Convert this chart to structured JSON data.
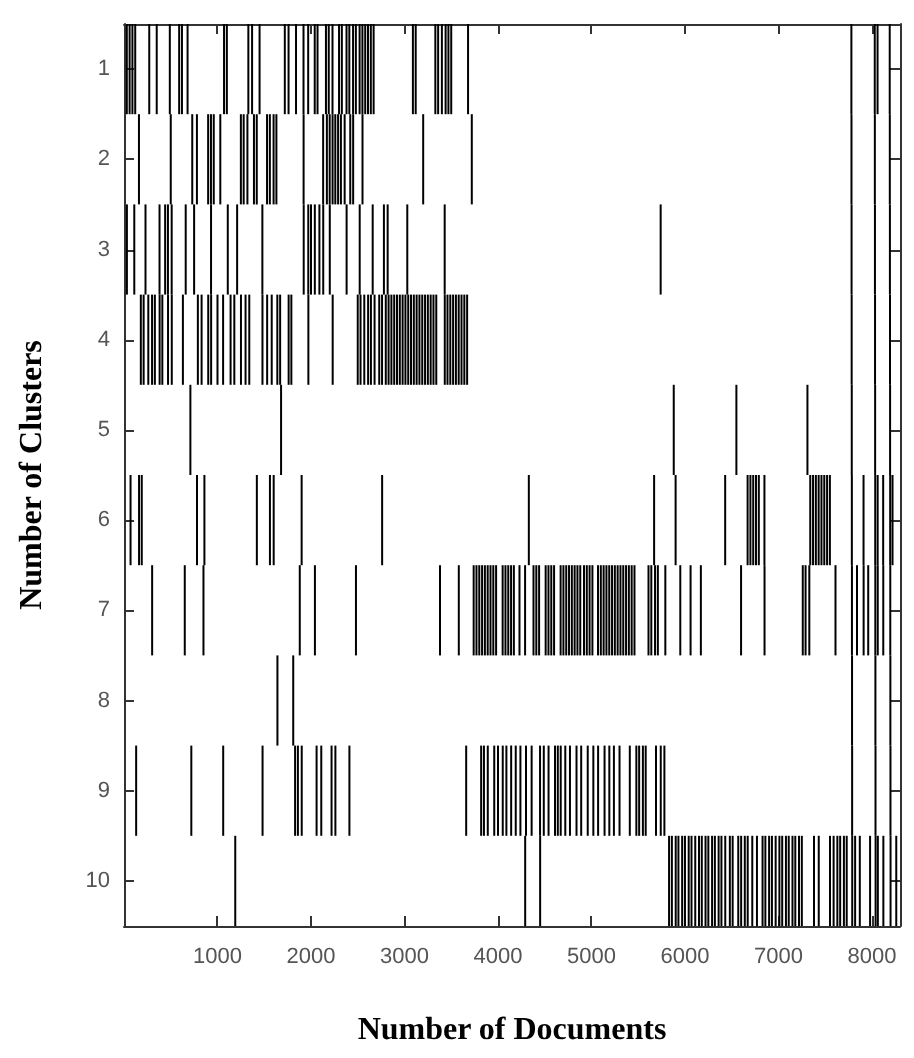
{
  "chart_data": {
    "type": "bar",
    "xlabel": "Number of Documents",
    "ylabel": "Number of Clusters",
    "xlim": [
      0,
      8300
    ],
    "xticks": [
      1000,
      2000,
      3000,
      4000,
      5000,
      6000,
      7000,
      8000
    ],
    "ylim": [
      10.5,
      0.5
    ],
    "yticks": [
      1,
      2,
      3,
      4,
      5,
      6,
      7,
      8,
      9,
      10
    ],
    "series": [
      {
        "color": "#000000",
        "x": [
          30,
          31,
          60,
          70,
          90,
          110,
          120,
          130,
          160,
          161,
          180,
          190,
          210,
          230,
          260,
          270,
          300,
          301,
          330,
          350,
          380,
          381,
          410,
          440,
          470,
          471,
          490,
          500,
          510,
          511,
          590,
          620,
          630,
          650,
          660,
          680,
          710,
          720,
          730,
          750,
          780,
          781,
          790,
          830,
          850,
          860,
          900,
          901,
          930,
          931,
          932,
          960,
          1000,
          1030,
          1060,
          1061,
          1070,
          1100,
          1110,
          1140,
          1180,
          1190,
          1210,
          1250,
          1251,
          1280,
          1300,
          1320,
          1330,
          1340,
          1370,
          1390,
          1420,
          1421,
          1450,
          1480,
          1481,
          1482,
          1530,
          1531,
          1560,
          1561,
          1580,
          1600,
          1601,
          1630,
          1640,
          1641,
          1670,
          1680,
          1720,
          1760,
          1761,
          1790,
          1810,
          1830,
          1840,
          1860,
          1880,
          1900,
          1901,
          1920,
          1921,
          1922,
          1970,
          1971,
          1972,
          2000,
          2040,
          2041,
          2042,
          2060,
          2070,
          2090,
          2110,
          2130,
          2131,
          2160,
          2170,
          2190,
          2200,
          2201,
          2220,
          2230,
          2231,
          2232,
          2260,
          2261,
          2290,
          2300,
          2320,
          2330,
          2360,
          2380,
          2381,
          2410,
          2411,
          2420,
          2450,
          2451,
          2480,
          2481,
          2500,
          2520,
          2521,
          2530,
          2550,
          2551,
          2570,
          2580,
          2610,
          2611,
          2640,
          2641,
          2660,
          2670,
          2680,
          2730,
          2760,
          2761,
          2780,
          2800,
          2820,
          2830,
          2860,
          2890,
          2920,
          2950,
          2980,
          3010,
          3030,
          3040,
          3070,
          3090,
          3100,
          3120,
          3130,
          3160,
          3190,
          3200,
          3220,
          3250,
          3280,
          3310,
          3330,
          3340,
          3360,
          3380,
          3400,
          3430,
          3431,
          3440,
          3460,
          3470,
          3490,
          3500,
          3520,
          3550,
          3580,
          3581,
          3610,
          3640,
          3660,
          3670,
          3680,
          3720,
          3740,
          3770,
          3800,
          3820,
          3830,
          3850,
          3860,
          3890,
          3891,
          3920,
          3950,
          3960,
          3980,
          4000,
          4050,
          4051,
          4080,
          4090,
          4110,
          4140,
          4141,
          4170,
          4190,
          4230,
          4240,
          4290,
          4291,
          4300,
          4330,
          4360,
          4380,
          4410,
          4440,
          4450,
          4451,
          4490,
          4510,
          4540,
          4541,
          4570,
          4600,
          4610,
          4640,
          4670,
          4671,
          4700,
          4720,
          4730,
          4760,
          4770,
          4790,
          4820,
          4840,
          4850,
          4880,
          4890,
          4920,
          4950,
          4960,
          4980,
          5010,
          5020,
          5070,
          5071,
          5100,
          5130,
          5140,
          5160,
          5190,
          5191,
          5220,
          5240,
          5250,
          5280,
          5300,
          5310,
          5340,
          5370,
          5400,
          5410,
          5430,
          5460,
          5480,
          5510,
          5550,
          5580,
          5610,
          5640,
          5670,
          5680,
          5690,
          5710,
          5740,
          5741,
          5780,
          5790,
          5830,
          5860,
          5880,
          5900,
          5901,
          5930,
          5950,
          5970,
          6000,
          6040,
          6060,
          6070,
          6110,
          6150,
          6170,
          6180,
          6220,
          6250,
          6290,
          6320,
          6360,
          6390,
          6430,
          6431,
          6480,
          6510,
          6550,
          6570,
          6600,
          6601,
          6640,
          6670,
          6671,
          6700,
          6720,
          6730,
          6760,
          6770,
          6790,
          6830,
          6850,
          6851,
          6860,
          6900,
          6930,
          6970,
          7010,
          7040,
          7080,
          7110,
          7150,
          7180,
          7220,
          7250,
          7260,
          7290,
          7310,
          7330,
          7340,
          7370,
          7380,
          7400,
          7430,
          7431,
          7460,
          7490,
          7520,
          7550,
          7551,
          7590,
          7610,
          7630,
          7660,
          7700,
          7730,
          7780,
          7781,
          7782,
          7783,
          7784,
          7785,
          7786,
          7787,
          7788,
          7789,
          7820,
          7840,
          7870,
          7910,
          7911,
          7960,
          7980,
          8030,
          8031,
          8032,
          8033,
          8034,
          8035,
          8036,
          8037,
          8038,
          8039,
          8060,
          8061,
          8062,
          8063,
          8120,
          8121,
          8122,
          8190,
          8191,
          8192,
          8193,
          8194,
          8195,
          8196,
          8197,
          8198,
          8199,
          8220,
          8260
        ],
        "values": [
          1,
          1,
          1,
          1,
          1,
          1,
          1,
          1,
          1,
          1,
          1,
          1,
          1,
          1,
          1,
          1,
          1,
          1,
          1,
          1,
          1,
          1,
          1,
          1,
          1,
          1,
          1,
          1,
          1,
          1,
          1,
          1,
          1,
          1,
          1,
          1,
          1,
          1,
          1,
          1,
          1,
          1,
          1,
          1,
          1,
          1,
          1,
          1,
          1,
          1,
          1,
          1,
          1,
          1,
          1,
          1,
          1,
          1,
          1,
          1,
          1,
          1,
          1,
          1,
          1,
          1,
          1,
          1,
          1,
          1,
          1,
          1,
          1,
          1,
          1,
          1,
          1,
          1,
          1,
          1,
          1,
          1,
          1,
          1,
          1,
          1,
          1,
          1,
          1,
          1,
          1,
          1,
          1,
          1,
          1,
          1,
          1,
          1,
          1,
          1,
          1,
          1,
          1,
          1,
          1,
          1,
          1,
          1,
          1,
          1,
          1,
          1,
          1,
          1,
          1,
          1,
          1,
          1,
          1,
          1,
          1,
          1,
          1,
          1,
          1,
          1,
          1,
          1,
          1,
          1,
          1,
          1,
          1,
          1,
          1,
          1,
          1,
          1,
          1,
          1,
          1,
          1,
          1,
          1,
          1,
          1,
          1,
          1,
          1,
          1,
          1,
          1,
          1,
          1,
          1,
          1,
          1,
          1,
          1,
          1,
          1,
          1,
          1,
          1,
          1,
          1,
          1,
          1,
          1,
          1,
          1,
          1,
          1,
          1,
          1,
          1,
          1,
          1,
          1,
          1,
          1,
          1,
          1,
          1,
          1,
          1,
          1,
          1,
          1,
          1,
          1,
          1,
          1,
          1,
          1,
          1,
          1,
          1,
          1,
          1,
          1,
          1,
          1,
          1,
          1,
          1,
          1,
          1,
          1,
          1,
          1,
          1,
          1,
          1,
          1,
          1,
          1,
          1,
          1,
          1,
          1,
          1,
          1,
          1,
          1,
          1,
          1,
          1,
          1,
          1,
          1,
          1,
          1,
          1,
          1,
          1,
          1,
          1,
          1,
          1,
          1,
          1,
          1,
          1,
          1,
          1,
          1,
          1,
          1,
          1,
          1,
          1,
          1,
          1,
          1,
          1,
          1,
          1,
          1,
          1,
          1,
          1,
          1,
          1,
          1,
          1,
          1,
          1,
          1,
          1,
          1,
          1,
          1,
          1,
          1,
          1,
          1,
          1,
          1,
          1,
          1,
          1,
          1,
          1,
          1,
          1,
          1,
          1,
          1,
          1,
          1,
          1,
          1,
          1,
          1,
          1,
          1,
          1,
          1,
          1,
          1,
          1,
          1,
          1,
          1,
          1,
          1,
          1,
          1,
          1,
          1,
          1,
          1,
          1,
          1,
          1,
          1,
          1,
          1,
          1,
          1,
          1,
          1,
          1,
          1,
          1,
          1,
          1,
          1,
          1,
          1,
          1,
          1,
          1,
          1,
          1,
          1,
          1,
          1,
          1,
          1,
          1,
          1,
          1,
          1,
          1,
          1,
          1,
          1,
          1,
          1,
          1,
          1,
          1,
          1,
          1,
          1,
          1,
          1,
          1,
          1,
          1,
          1,
          1,
          1,
          1,
          1,
          1,
          1,
          1,
          1,
          1,
          1,
          1,
          1,
          1,
          1,
          1,
          1,
          1,
          1,
          1,
          1,
          1,
          1,
          1,
          1,
          1,
          1,
          1,
          1,
          1,
          1,
          1,
          1,
          1,
          1,
          1,
          1,
          1,
          1,
          1,
          1,
          1,
          1,
          1,
          1,
          1,
          1,
          1,
          1,
          1,
          1,
          1,
          1,
          1,
          1,
          1,
          1,
          1,
          1,
          1,
          1
        ],
        "base": [
          0.5,
          2.5,
          0.5,
          5.5,
          0.5,
          2.5,
          0.5,
          8.5,
          1.5,
          5.5,
          3.5,
          5.5,
          3.5,
          2.5,
          3.5,
          0.5,
          3.5,
          6.5,
          3.5,
          0.5,
          2.5,
          3.5,
          3.5,
          2.5,
          2.5,
          3.5,
          0.5,
          1.5,
          2.5,
          3.5,
          0.5,
          0.5,
          3.5,
          6.5,
          2.5,
          0.5,
          4.5,
          8.5,
          1.5,
          2.5,
          1.5,
          5.5,
          3.5,
          3.5,
          6.5,
          5.5,
          1.5,
          3.5,
          1.5,
          2.5,
          3.5,
          1.5,
          3.5,
          1.5,
          3.5,
          8.5,
          0.5,
          0.5,
          2.5,
          3.5,
          3.5,
          9.5,
          2.5,
          1.5,
          3.5,
          1.5,
          3.5,
          1.5,
          0.5,
          3.5,
          0.5,
          1.5,
          1.5,
          5.5,
          0.5,
          2.5,
          3.5,
          8.5,
          1.5,
          3.5,
          1.5,
          5.5,
          3.5,
          1.5,
          5.5,
          1.5,
          3.5,
          7.5,
          3.5,
          4.5,
          0.5,
          0.5,
          3.5,
          3.5,
          7.5,
          8.5,
          0.5,
          8.5,
          6.5,
          5.5,
          8.5,
          0.5,
          1.5,
          2.5,
          0.5,
          2.5,
          3.5,
          2.5,
          0.5,
          2.5,
          6.5,
          8.5,
          0.5,
          2.5,
          8.5,
          1.5,
          2.5,
          0.5,
          1.5,
          0.5,
          1.5,
          2.5,
          8.5,
          0.5,
          1.5,
          3.5,
          1.5,
          8.5,
          1.5,
          0.5,
          1.5,
          0.5,
          1.5,
          0.5,
          2.5,
          0.5,
          8.5,
          1.5,
          0.5,
          1.5,
          0.5,
          6.5,
          3.5,
          0.5,
          2.5,
          3.5,
          0.5,
          1.5,
          3.5,
          0.5,
          0.5,
          3.5,
          0.5,
          3.5,
          2.5,
          0.5,
          3.5,
          3.5,
          3.5,
          5.5,
          2.5,
          3.5,
          2.5,
          3.5,
          3.5,
          3.5,
          3.5,
          3.5,
          3.5,
          3.5,
          2.5,
          3.5,
          3.5,
          0.5,
          3.5,
          0.5,
          3.5,
          3.5,
          3.5,
          1.5,
          3.5,
          3.5,
          3.5,
          3.5,
          0.5,
          3.5,
          0.5,
          6.5,
          0.5,
          2.5,
          3.5,
          0.5,
          3.5,
          0.5,
          3.5,
          0.5,
          3.5,
          3.5,
          3.5,
          6.5,
          3.5,
          3.5,
          8.5,
          3.5,
          0.5,
          1.5,
          6.5,
          6.5,
          6.5,
          8.5,
          6.5,
          8.5,
          6.5,
          6.5,
          8.5,
          6.5,
          6.5,
          8.5,
          6.5,
          8.5,
          6.5,
          8.5,
          6.5,
          8.5,
          6.5,
          6.5,
          8.5,
          6.5,
          8.5,
          6.5,
          8.5,
          6.5,
          9.5,
          8.5,
          5.5,
          8.5,
          6.5,
          6.5,
          6.5,
          8.5,
          9.5,
          8.5,
          6.5,
          6.5,
          8.5,
          6.5,
          6.5,
          8.5,
          8.5,
          6.5,
          8.5,
          6.5,
          8.5,
          6.5,
          6.5,
          8.5,
          6.5,
          6.5,
          8.5,
          6.5,
          6.5,
          8.5,
          6.5,
          6.5,
          8.5,
          6.5,
          6.5,
          8.5,
          6.5,
          8.5,
          6.5,
          6.5,
          8.5,
          6.5,
          6.5,
          8.5,
          6.5,
          8.5,
          6.5,
          6.5,
          8.5,
          6.5,
          6.5,
          6.5,
          6.5,
          8.5,
          6.5,
          6.5,
          8.5,
          8.5,
          8.5,
          8.5,
          6.5,
          6.5,
          5.5,
          6.5,
          8.5,
          6.5,
          2.5,
          8.5,
          8.5,
          6.5,
          9.5,
          9.5,
          4.5,
          5.5,
          9.5,
          9.5,
          6.5,
          9.5,
          9.5,
          9.5,
          6.5,
          9.5,
          9.5,
          9.5,
          6.5,
          9.5,
          9.5,
          9.5,
          9.5,
          9.5,
          9.5,
          9.5,
          5.5,
          9.5,
          9.5,
          9.5,
          4.5,
          9.5,
          6.5,
          9.5,
          9.5,
          5.5,
          9.5,
          5.5,
          9.5,
          5.5,
          5.5,
          9.5,
          5.5,
          9.5,
          5.5,
          6.5,
          9.5,
          9.5,
          9.5,
          9.5,
          9.5,
          9.5,
          9.5,
          9.5,
          9.5,
          9.5,
          9.5,
          9.5,
          6.5,
          6.5,
          4.5,
          6.5,
          5.5,
          5.5,
          9.5,
          5.5,
          5.5,
          9.5,
          5.5,
          5.5,
          5.5,
          5.5,
          9.5,
          9.5,
          6.5,
          9.5,
          9.5,
          9.5,
          9.5,
          0.5,
          1.5,
          2.5,
          3.5,
          4.5,
          5.5,
          6.5,
          7.5,
          8.5,
          9.5,
          9.5,
          6.5,
          9.5,
          5.5,
          6.5,
          6.5,
          9.5,
          0.5,
          1.5,
          2.5,
          3.5,
          4.5,
          5.5,
          6.5,
          7.5,
          8.5,
          9.5,
          0.5,
          5.5,
          6.5,
          9.5,
          5.5,
          6.5,
          9.5,
          0.5,
          1.5,
          2.5,
          3.5,
          4.5,
          5.5,
          6.5,
          7.5,
          8.5,
          9.5,
          5.5,
          9.5
        ]
      }
    ]
  }
}
